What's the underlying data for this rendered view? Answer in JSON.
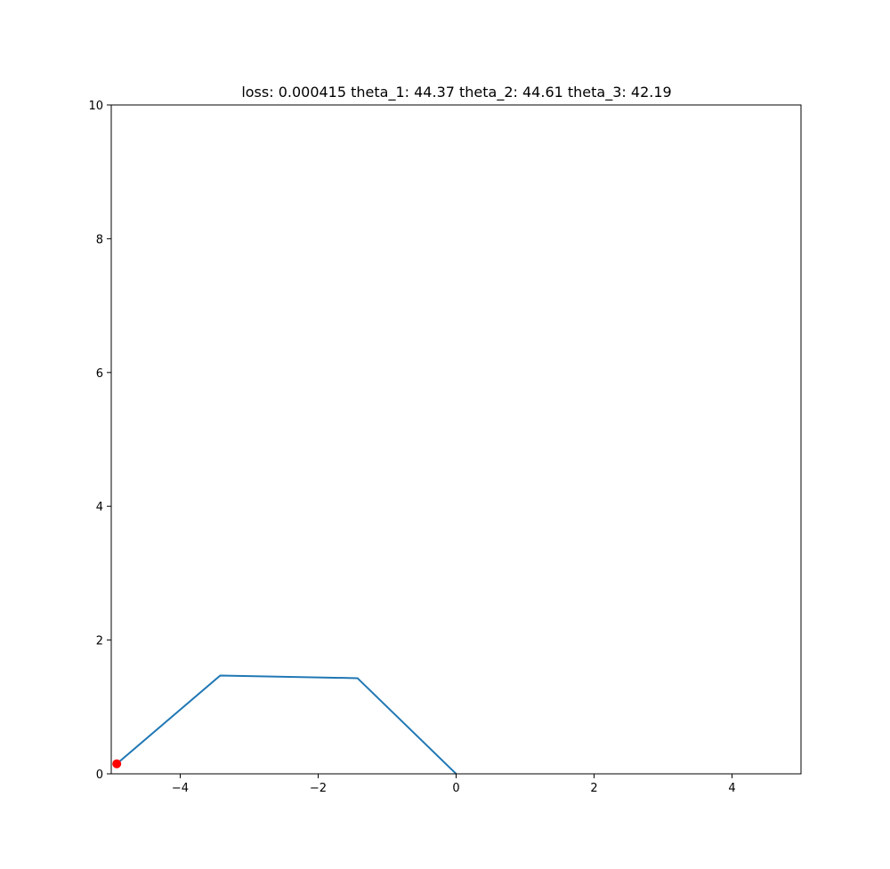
{
  "chart_data": {
    "type": "line",
    "title": "loss: 0.000415 theta_1: 44.37 theta_2: 44.61 theta_3: 42.19",
    "xlabel": "",
    "ylabel": "",
    "xlim": [
      -5,
      5
    ],
    "ylim": [
      0,
      10
    ],
    "x_ticks": [
      -4,
      -2,
      0,
      2,
      4
    ],
    "y_ticks": [
      0,
      2,
      4,
      6,
      8,
      10
    ],
    "grid": false,
    "series": [
      {
        "color": "#1f77b4",
        "x": [
          0,
          -1.43,
          -3.42,
          -4.92
        ],
        "y": [
          0,
          1.43,
          1.47,
          0.15
        ]
      }
    ],
    "target_point": {
      "x": -4.92,
      "y": 0.15,
      "color": "#ff0000"
    }
  }
}
